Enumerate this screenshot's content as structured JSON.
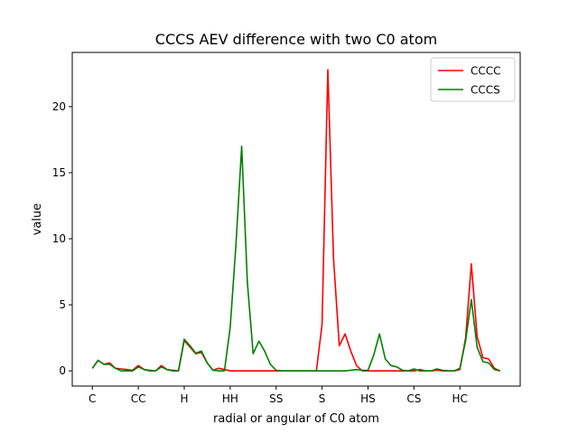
{
  "chart_data": {
    "type": "line",
    "title": "CCCS AEV difference with two C0 atom",
    "xlabel": "radial or angular of C0 atom",
    "ylabel": "value",
    "x_tick_labels": [
      "C",
      "CC",
      "H",
      "HH",
      "SS",
      "S",
      "HS",
      "CS",
      "HC"
    ],
    "x_tick_positions": [
      0,
      8,
      16,
      24,
      32,
      40,
      48,
      56,
      64
    ],
    "xlim": [
      -3.5,
      74.5
    ],
    "ylim": [
      -1.15,
      24.1
    ],
    "y_ticks": [
      0,
      5,
      10,
      15,
      20
    ],
    "grid": false,
    "legend_position": "top-right",
    "x": [
      0,
      1,
      2,
      3,
      4,
      5,
      6,
      7,
      8,
      9,
      10,
      11,
      12,
      13,
      14,
      15,
      16,
      17,
      18,
      19,
      20,
      21,
      22,
      23,
      24,
      25,
      26,
      27,
      28,
      29,
      30,
      31,
      32,
      33,
      34,
      35,
      36,
      37,
      38,
      39,
      40,
      41,
      42,
      43,
      44,
      45,
      46,
      47,
      48,
      49,
      50,
      51,
      52,
      53,
      54,
      55,
      56,
      57,
      58,
      59,
      60,
      61,
      62,
      63,
      64,
      65,
      66,
      67,
      68,
      69,
      70,
      71
    ],
    "series": [
      {
        "name": "CCCC",
        "color": "#ff0000",
        "values": [
          0.2,
          0.8,
          0.5,
          0.6,
          0.2,
          0.15,
          0.1,
          0.05,
          0.4,
          0.1,
          0.05,
          0.0,
          0.4,
          0.1,
          0.05,
          0.0,
          2.3,
          1.8,
          1.3,
          1.4,
          0.6,
          0.05,
          0.2,
          0.1,
          0.0,
          0.0,
          0.0,
          0.0,
          0.0,
          0.0,
          0.0,
          0.0,
          0.0,
          0.0,
          0.0,
          0.0,
          0.0,
          0.0,
          0.0,
          0.0,
          3.5,
          22.8,
          8.5,
          1.9,
          2.8,
          1.5,
          0.4,
          0.0,
          0.0,
          0.0,
          0.0,
          0.0,
          0.0,
          0.0,
          0.0,
          0.0,
          0.0,
          0.1,
          0.0,
          0.0,
          0.05,
          0.0,
          0.0,
          0.0,
          0.1,
          2.5,
          8.1,
          2.6,
          1.0,
          0.9,
          0.2,
          0.0
        ]
      },
      {
        "name": "CCCS",
        "color": "#008000",
        "values": [
          0.2,
          0.8,
          0.5,
          0.5,
          0.2,
          0.0,
          0.0,
          0.0,
          0.3,
          0.1,
          0.0,
          0.0,
          0.3,
          0.1,
          0.0,
          0.0,
          2.4,
          1.9,
          1.35,
          1.5,
          0.6,
          0.05,
          0.0,
          0.0,
          3.3,
          9.5,
          17.0,
          6.7,
          1.3,
          2.25,
          1.5,
          0.5,
          0.05,
          0.0,
          0.0,
          0.0,
          0.0,
          0.0,
          0.0,
          0.0,
          0.0,
          0.0,
          0.0,
          0.0,
          0.0,
          0.05,
          0.1,
          0.05,
          0.05,
          1.2,
          2.8,
          0.9,
          0.4,
          0.3,
          0.05,
          0.0,
          0.15,
          0.0,
          0.0,
          0.0,
          0.15,
          0.05,
          0.0,
          0.0,
          0.2,
          2.3,
          5.4,
          1.8,
          0.7,
          0.6,
          0.1,
          0.0
        ]
      }
    ]
  }
}
